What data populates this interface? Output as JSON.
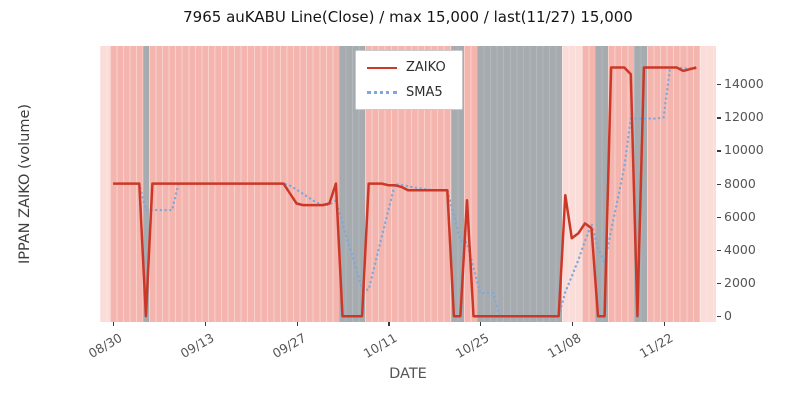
{
  "chart_data": {
    "type": "line",
    "title": "7965 auKABU Line(Close) / max 15,000 / last(11/27) 15,000",
    "xlabel": "DATE",
    "ylabel": "IPPAN ZAIKO (volume)",
    "legend_position": "upper center",
    "grid": false,
    "x_tick_labels": [
      "08/30",
      "09/13",
      "09/27",
      "10/11",
      "10/25",
      "11/08",
      "11/22"
    ],
    "x_tick_days": [
      0,
      14,
      28,
      42,
      56,
      70,
      84
    ],
    "y_ticks": [
      0,
      2000,
      4000,
      6000,
      8000,
      10000,
      12000,
      14000
    ],
    "ylim": [
      -350,
      16300
    ],
    "x_day_domain": [
      -2,
      92
    ],
    "dates": [
      "08/30",
      "08/31",
      "09/01",
      "09/02",
      "09/03",
      "09/04",
      "09/05",
      "09/06",
      "09/07",
      "09/08",
      "09/09",
      "09/10",
      "09/11",
      "09/12",
      "09/13",
      "09/14",
      "09/15",
      "09/16",
      "09/17",
      "09/18",
      "09/19",
      "09/20",
      "09/21",
      "09/22",
      "09/23",
      "09/24",
      "09/25",
      "09/26",
      "09/27",
      "09/28",
      "09/29",
      "09/30",
      "10/01",
      "10/02",
      "10/03",
      "10/04",
      "10/05",
      "10/06",
      "10/07",
      "10/08",
      "10/09",
      "10/10",
      "10/11",
      "10/12",
      "10/13",
      "10/14",
      "10/15",
      "10/16",
      "10/17",
      "10/18",
      "10/19",
      "10/20",
      "10/21",
      "10/22",
      "10/23",
      "10/24",
      "10/25",
      "10/26",
      "10/27",
      "10/28",
      "10/29",
      "10/30",
      "10/31",
      "11/01",
      "11/02",
      "11/03",
      "11/04",
      "11/05",
      "11/06",
      "11/07",
      "11/08",
      "11/09",
      "11/10",
      "11/11",
      "11/12",
      "11/13",
      "11/14",
      "11/15",
      "11/16",
      "11/17",
      "11/18",
      "11/19",
      "11/20",
      "11/21",
      "11/22",
      "11/23",
      "11/24",
      "11/25",
      "11/26",
      "11/27"
    ],
    "series": [
      {
        "name": "ZAIKO",
        "style": "solid",
        "color": "#cc3828",
        "values": [
          8000,
          8000,
          8000,
          8000,
          8000,
          0,
          8000,
          8000,
          8000,
          8000,
          8000,
          8000,
          8000,
          8000,
          8000,
          8000,
          8000,
          8000,
          8000,
          8000,
          8000,
          8000,
          8000,
          8000,
          8000,
          8000,
          8000,
          7400,
          6800,
          6700,
          6700,
          6700,
          6700,
          6800,
          8000,
          0,
          0,
          0,
          0,
          8000,
          8000,
          8000,
          7900,
          7900,
          7800,
          7600,
          7600,
          7600,
          7600,
          7600,
          7600,
          7600,
          0,
          0,
          7000,
          0,
          0,
          0,
          0,
          0,
          0,
          0,
          0,
          0,
          0,
          0,
          0,
          0,
          0,
          7300,
          4700,
          5000,
          5600,
          5300,
          0,
          0,
          15000,
          15000,
          15000,
          14600,
          0,
          15000,
          15000,
          15000,
          15000,
          15000,
          15000,
          14800,
          14900,
          15000
        ]
      },
      {
        "name": "SMA5",
        "style": "dotted",
        "color": "#7fa8d9",
        "values": [
          null,
          null,
          null,
          null,
          8000,
          6400,
          6400,
          6400,
          6400,
          6400,
          8000,
          8000,
          8000,
          8000,
          8000,
          8000,
          8000,
          8000,
          8000,
          8000,
          8000,
          8000,
          8000,
          8000,
          8000,
          8000,
          8000,
          7880,
          7640,
          7380,
          7120,
          6860,
          6720,
          6720,
          6980,
          5640,
          4300,
          2960,
          1600,
          1600,
          3200,
          4800,
          6380,
          7960,
          7920,
          7840,
          7760,
          7700,
          7640,
          7600,
          7600,
          7600,
          6080,
          4560,
          4440,
          2920,
          1400,
          1400,
          1400,
          0,
          0,
          0,
          0,
          0,
          0,
          0,
          0,
          0,
          0,
          1460,
          2400,
          3400,
          4520,
          5580,
          4120,
          3180,
          5180,
          7060,
          9000,
          11920,
          11920,
          11920,
          11920,
          11920,
          12000,
          15000,
          15000,
          14960,
          14940,
          14940
        ]
      }
    ],
    "background_bands": [
      {
        "type": "light",
        "start": -2,
        "end": -0.5
      },
      {
        "type": "pink",
        "start": -0.5,
        "end": 4.5
      },
      {
        "type": "gray",
        "start": 4.5,
        "end": 5.5
      },
      {
        "type": "pink",
        "start": 5.5,
        "end": 34.5
      },
      {
        "type": "gray",
        "start": 34.5,
        "end": 38.5
      },
      {
        "type": "pink",
        "start": 38.5,
        "end": 51.5
      },
      {
        "type": "gray",
        "start": 51.5,
        "end": 53.5
      },
      {
        "type": "pink",
        "start": 53.5,
        "end": 55.5
      },
      {
        "type": "gray",
        "start": 55.5,
        "end": 68.5
      },
      {
        "type": "light",
        "start": 68.5,
        "end": 71.5
      },
      {
        "type": "pink",
        "start": 71.5,
        "end": 73.5
      },
      {
        "type": "gray",
        "start": 73.5,
        "end": 75.5
      },
      {
        "type": "pink",
        "start": 75.5,
        "end": 79.5
      },
      {
        "type": "gray",
        "start": 79.5,
        "end": 81.5
      },
      {
        "type": "pink",
        "start": 81.5,
        "end": 89.5
      },
      {
        "type": "light",
        "start": 89.5,
        "end": 92
      }
    ],
    "colors": {
      "pink_band": "#f3b5ae",
      "light_pink_band": "#fadcd8",
      "gray_band": "#a6abb0",
      "zaiko_line": "#cc3828",
      "sma5_line": "#7fa8d9"
    }
  }
}
